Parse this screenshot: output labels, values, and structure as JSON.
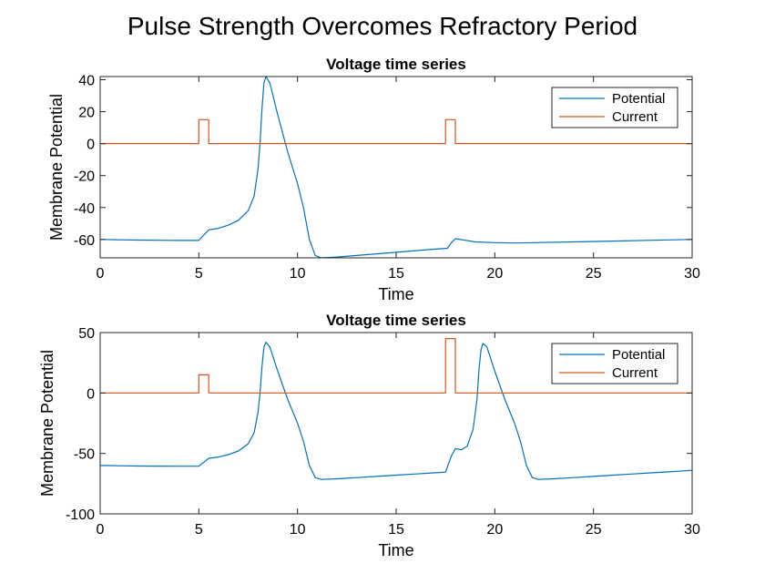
{
  "figure": {
    "title": "Pulse Strength Overcomes Refractory Period"
  },
  "colors": {
    "potential": "#0072BD",
    "current": "#D95319"
  },
  "chart_data": [
    {
      "type": "line",
      "title": "Voltage time series",
      "xlabel": "Time",
      "ylabel": "Membrane Potential",
      "xlim": [
        0,
        30
      ],
      "ylim": [
        -71.5,
        42
      ],
      "xticks": [
        0,
        5,
        10,
        15,
        20,
        25,
        30
      ],
      "xtick_labels": [
        "0",
        "5",
        "10",
        "15",
        "20",
        "25",
        "30"
      ],
      "yticks": [
        40,
        20,
        0,
        -20,
        -40,
        -60
      ],
      "ytick_labels": [
        "40",
        "20",
        "0",
        "-20",
        "-40",
        "-60"
      ],
      "grid": false,
      "legend": "top-right",
      "series": [
        {
          "name": "Potential",
          "x": [
            0,
            1,
            2,
            3,
            4,
            5,
            5.5,
            6,
            6.5,
            7,
            7.5,
            7.8,
            8.0,
            8.1,
            8.2,
            8.3,
            8.4,
            8.6,
            9.0,
            9.5,
            10.0,
            10.3,
            10.6,
            10.9,
            11.2,
            12,
            13,
            14,
            15,
            16,
            17,
            17.6,
            17.8,
            18,
            18.5,
            19,
            20,
            21,
            22,
            24,
            26,
            28,
            30
          ],
          "y": [
            -60,
            -60.2,
            -60.4,
            -60.5,
            -60.6,
            -60.6,
            -54,
            -53,
            -51,
            -48,
            -42,
            -33,
            -16,
            0,
            22,
            38,
            42,
            38,
            18,
            -5,
            -25,
            -40,
            -60,
            -70,
            -71.5,
            -71,
            -70,
            -69,
            -68,
            -67,
            -66,
            -65.5,
            -62,
            -59.5,
            -60.5,
            -61.5,
            -62,
            -62.2,
            -62,
            -61.5,
            -61,
            -60.5,
            -60
          ]
        },
        {
          "name": "Current",
          "x": [
            0,
            5,
            5,
            5.5,
            5.5,
            17.5,
            17.5,
            18,
            18,
            30
          ],
          "y": [
            0,
            0,
            15,
            15,
            0,
            0,
            15,
            15,
            0,
            0
          ]
        }
      ]
    },
    {
      "type": "line",
      "title": "Voltage time series",
      "xlabel": "Time",
      "ylabel": "Membrane Potential",
      "xlim": [
        0,
        30
      ],
      "ylim": [
        -100,
        50
      ],
      "xticks": [
        0,
        5,
        10,
        15,
        20,
        25,
        30
      ],
      "xtick_labels": [
        "0",
        "5",
        "10",
        "15",
        "20",
        "25",
        "30"
      ],
      "yticks": [
        50,
        0,
        -50,
        -100
      ],
      "ytick_labels": [
        "50",
        "0",
        "-50",
        "-100"
      ],
      "grid": false,
      "legend": "top-right",
      "series": [
        {
          "name": "Potential",
          "x": [
            0,
            1,
            2,
            3,
            4,
            5,
            5.5,
            6,
            6.5,
            7,
            7.5,
            7.8,
            8.0,
            8.1,
            8.2,
            8.3,
            8.4,
            8.6,
            9.0,
            9.5,
            10.0,
            10.3,
            10.6,
            10.9,
            11.2,
            12,
            13,
            14,
            15,
            16,
            17,
            17.5,
            17.8,
            18.0,
            18.3,
            18.6,
            18.9,
            19.1,
            19.2,
            19.3,
            19.4,
            19.6,
            20.0,
            20.5,
            21.0,
            21.3,
            21.6,
            21.9,
            22.2,
            23,
            24,
            25,
            26,
            27,
            28,
            29,
            30
          ],
          "y": [
            -60,
            -60.2,
            -60.4,
            -60.5,
            -60.6,
            -60.6,
            -54,
            -53,
            -51,
            -48,
            -42,
            -33,
            -16,
            0,
            22,
            38,
            42,
            38,
            18,
            -5,
            -25,
            -40,
            -60,
            -70,
            -71.5,
            -71,
            -70,
            -69,
            -68,
            -67,
            -66,
            -65.5,
            -52,
            -46,
            -47,
            -44,
            -30,
            -5,
            20,
            36,
            41,
            38,
            18,
            -5,
            -25,
            -40,
            -60,
            -70,
            -71.5,
            -71,
            -70,
            -69,
            -68,
            -67,
            -66,
            -65,
            -64
          ]
        },
        {
          "name": "Current",
          "x": [
            0,
            5,
            5,
            5.5,
            5.5,
            17.5,
            17.5,
            18,
            18,
            30
          ],
          "y": [
            0,
            0,
            15,
            15,
            0,
            0,
            45,
            45,
            0,
            0
          ]
        }
      ]
    }
  ]
}
